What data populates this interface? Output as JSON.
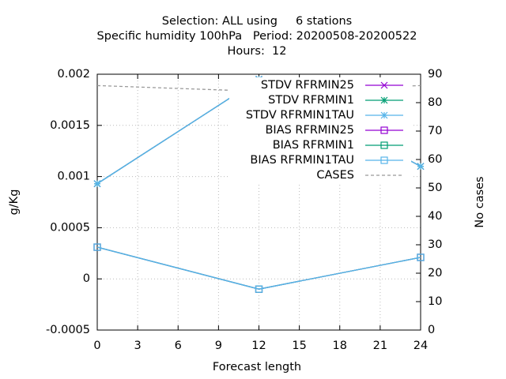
{
  "chart_data": {
    "type": "line",
    "title": [
      "Selection: ALL using     6 stations",
      "Specific humidity 100hPa   Period: 20200508-20200522",
      "Hours:  12"
    ],
    "xlabel": "Forecast length",
    "ylabel": "g/Kg",
    "y2label": "No cases",
    "x": [
      0,
      12,
      24
    ],
    "xlim": [
      0,
      24
    ],
    "xticks": [
      0,
      3,
      6,
      9,
      12,
      15,
      18,
      21,
      24
    ],
    "ylim": [
      -0.0005,
      0.002
    ],
    "yticks": [
      -0.0005,
      0,
      0.0005,
      0.001,
      0.0015,
      0.002
    ],
    "y2lim": [
      0,
      90
    ],
    "y2ticks": [
      0,
      10,
      20,
      30,
      40,
      50,
      60,
      70,
      80,
      90
    ],
    "grid": true,
    "legend": "top-right",
    "series": [
      {
        "name": "STDV RFRMIN25",
        "color": "#9400d3",
        "point": "cross",
        "values": [
          0.00093,
          0.00195,
          0.0011
        ]
      },
      {
        "name": "STDV RFRMIN1",
        "color": "#009e73",
        "point": "star",
        "values": [
          0.00093,
          0.00195,
          0.0011
        ]
      },
      {
        "name": "STDV RFRMIN1TAU",
        "color": "#56b4e9",
        "point": "star",
        "values": [
          0.00093,
          0.00195,
          0.0011
        ]
      },
      {
        "name": "BIAS RFRMIN25",
        "color": "#9400d3",
        "point": "square",
        "values": [
          0.00031,
          -0.0001,
          0.00021
        ]
      },
      {
        "name": "BIAS RFRMIN1",
        "color": "#009e73",
        "point": "square",
        "values": [
          0.00031,
          -0.0001,
          0.00021
        ]
      },
      {
        "name": "BIAS RFRMIN1TAU",
        "color": "#56b4e9",
        "point": "square",
        "values": [
          0.00031,
          -0.0001,
          0.00021
        ]
      },
      {
        "name": "CASES",
        "color": "#999999",
        "point": "none",
        "dash": true,
        "axis": "y2",
        "values": [
          86,
          84,
          86
        ]
      }
    ]
  }
}
